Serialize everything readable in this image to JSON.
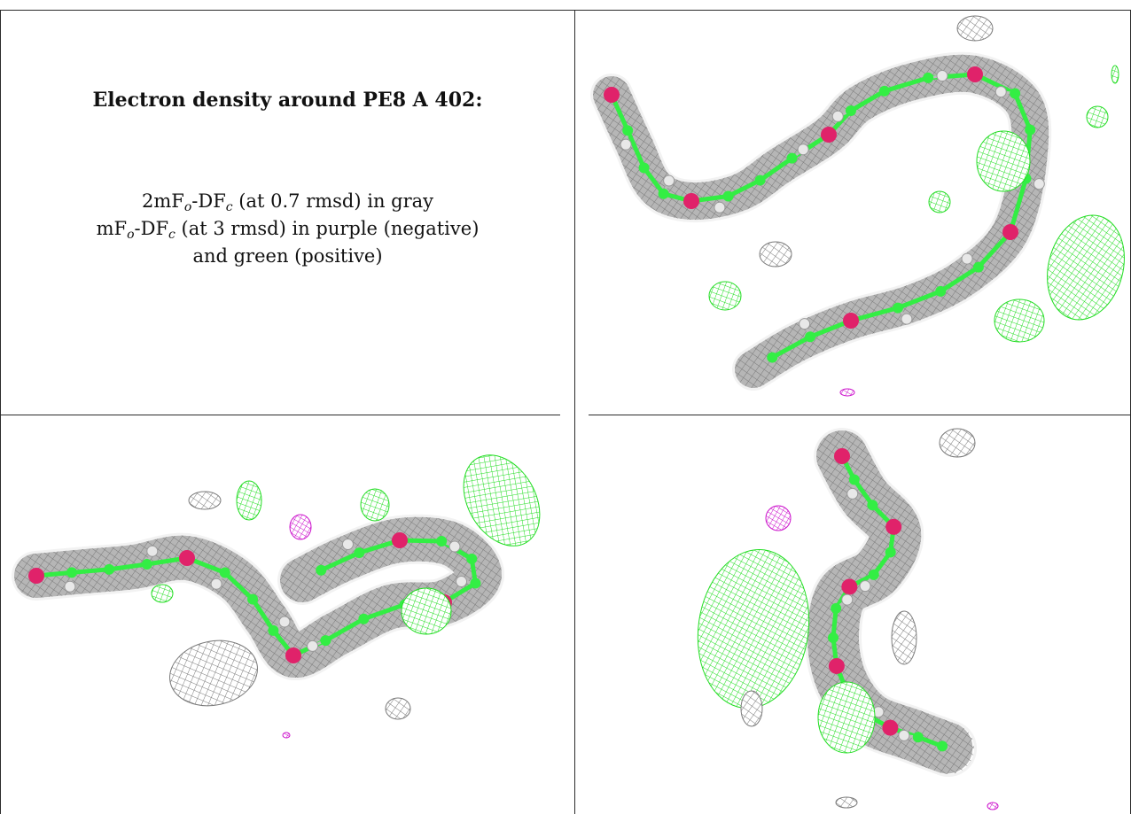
{
  "legend": {
    "title": "Electron density around PE8 A 402:",
    "line1": {
      "a": "2mF",
      "a_sub": "o",
      "b": "-DF",
      "b_sub": "c",
      "rest": " (at 0.7 rmsd) in gray"
    },
    "line2": {
      "a": "mF",
      "a_sub": "o",
      "b": "-DF",
      "b_sub": "c",
      "rest": " (at 3 rmsd) in purple (negative)"
    },
    "line3": "and green (positive)"
  },
  "colors": {
    "mesh_gray": "#7a7a7a",
    "mesh_green": "#22dd22",
    "mesh_purple": "#cc11cc",
    "carbon": "#33ee44",
    "oxygen": "#e0226a",
    "hydrogen": "#e8e8e8",
    "border": "#2b2b2b"
  },
  "panels": [
    {
      "name": "view-top-right"
    },
    {
      "name": "view-bottom-left"
    },
    {
      "name": "view-bottom-right"
    }
  ]
}
